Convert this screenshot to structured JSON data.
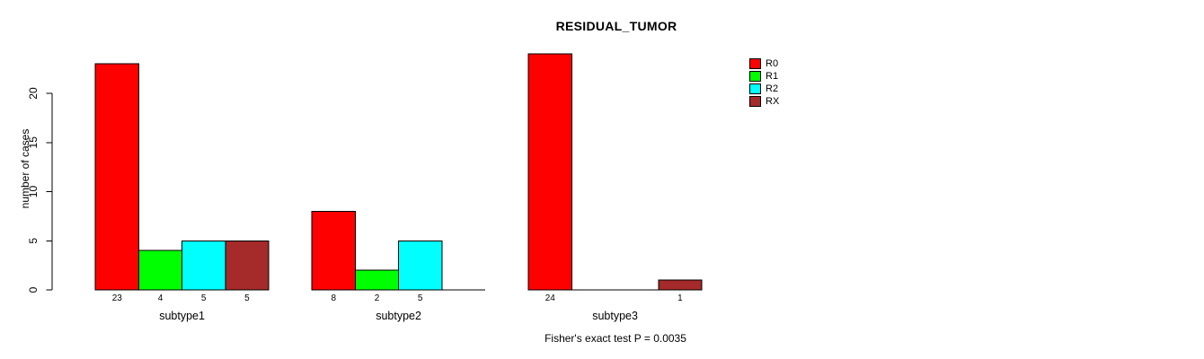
{
  "chart_data": {
    "type": "bar",
    "title": "RESIDUAL_TUMOR",
    "xlabel": "",
    "ylabel": "number of cases",
    "categories": [
      "subtype1",
      "subtype2",
      "subtype3"
    ],
    "series": [
      {
        "name": "R0",
        "color": "#FF0000",
        "values": [
          23,
          8,
          24
        ]
      },
      {
        "name": "R1",
        "color": "#00FF00",
        "values": [
          4,
          2,
          0
        ]
      },
      {
        "name": "R2",
        "color": "#00FFFF",
        "values": [
          5,
          5,
          0
        ]
      },
      {
        "name": "RX",
        "color": "#A52A2A",
        "values": [
          5,
          0,
          1
        ]
      }
    ],
    "yticks": [
      0,
      5,
      10,
      15,
      20
    ],
    "ylim": [
      0,
      24
    ],
    "grid": false,
    "bar_value_labels": true,
    "legend_position": "top-right",
    "annotation": "Fisher's exact test P = 0.0035",
    "colors": {
      "axis": "#000000",
      "bar_border": "#000000",
      "background": "#FFFFFF"
    }
  }
}
